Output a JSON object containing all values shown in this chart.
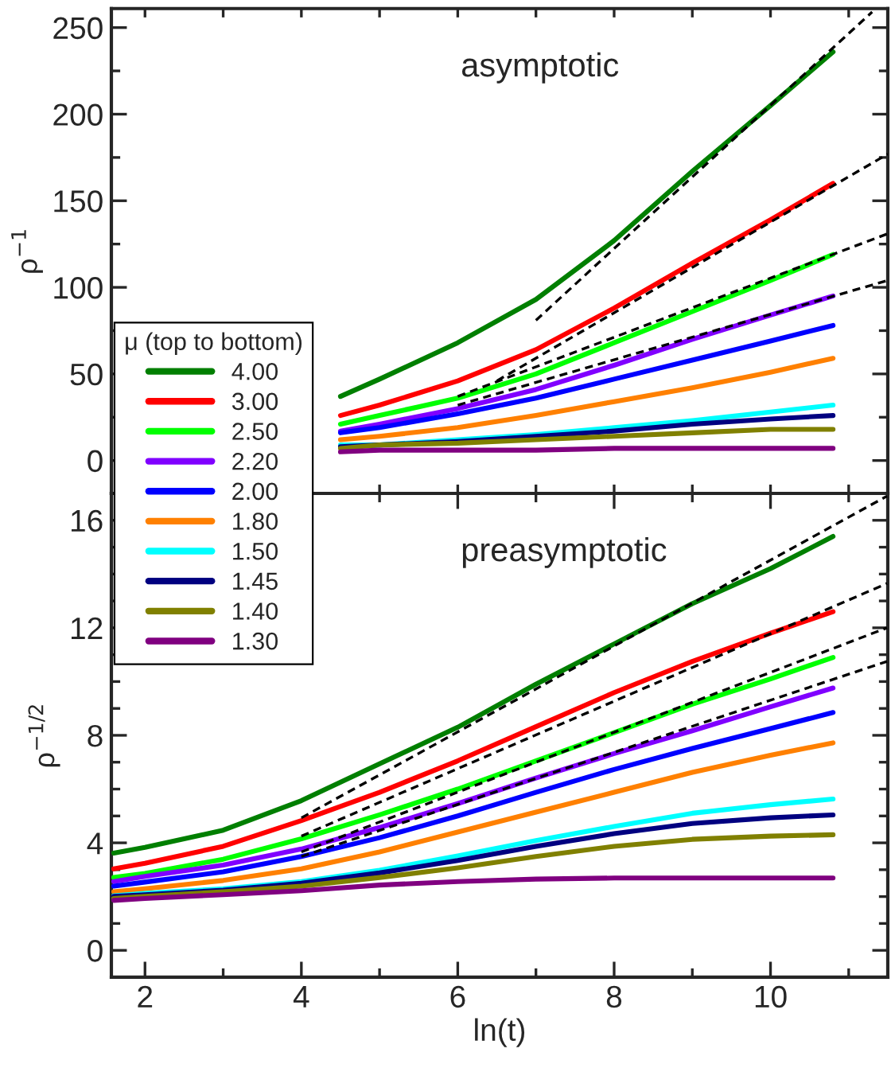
{
  "chart_data": [
    {
      "type": "line",
      "ylabel": "ρ$^{−1}$",
      "annotations": [
        "asymptotic"
      ],
      "legend": "left",
      "legend_title": "μ (top to bottom)",
      "tick_labels": "y",
      "grid": false,
      "xlim": [
        1.57,
        11.5
      ],
      "xticks": [
        {
          "value": 2,
          "label": null
        },
        {
          "value": 3,
          "label": null
        },
        {
          "value": 4,
          "label": null
        },
        {
          "value": 5,
          "label": null
        },
        {
          "value": 6,
          "label": null
        },
        {
          "value": 7,
          "label": null
        },
        {
          "value": 8,
          "label": null
        },
        {
          "value": 9,
          "label": null
        },
        {
          "value": 10,
          "label": null
        },
        {
          "value": 11,
          "label": null
        }
      ],
      "ylim": [
        -19,
        261
      ],
      "yticks": [
        0,
        {
          "value": 25,
          "label": null
        },
        50,
        {
          "value": 75,
          "label": null
        },
        100,
        {
          "value": 125,
          "label": null
        },
        150,
        {
          "value": 175,
          "label": null
        },
        200,
        {
          "value": 225,
          "label": null
        },
        250
      ],
      "x": [
        4.5,
        5,
        6,
        7,
        8,
        9,
        10,
        10.8
      ],
      "series": [
        {
          "name": "4.00",
          "color": "#007f00",
          "values": [
            37,
            47,
            68,
            93,
            127,
            167,
            205,
            236
          ]
        },
        {
          "name": "3.00",
          "color": "#ff0000",
          "values": [
            26,
            32,
            46,
            64,
            88,
            114,
            139,
            160
          ]
        },
        {
          "name": "2.50",
          "color": "#00ff00",
          "values": [
            21,
            26,
            36,
            50,
            68,
            86,
            104,
            119
          ]
        },
        {
          "name": "2.20",
          "color": "#8000ff",
          "values": [
            17,
            21,
            30,
            41,
            55,
            70,
            84,
            95
          ]
        },
        {
          "name": "2.00",
          "color": "#0000ff",
          "values": [
            16,
            19,
            27,
            36,
            47,
            58,
            69,
            78
          ]
        },
        {
          "name": "1.80",
          "color": "#ff8000",
          "values": [
            12,
            14,
            19,
            26,
            34,
            42,
            51,
            59
          ]
        },
        {
          "name": "1.50",
          "color": "#00ffff",
          "values": [
            9,
            9,
            12,
            15,
            19,
            23,
            28,
            32
          ]
        },
        {
          "name": "1.45",
          "color": "#000080",
          "values": [
            8,
            9,
            11,
            14,
            17,
            21,
            24,
            26
          ]
        },
        {
          "name": "1.40",
          "color": "#808000",
          "values": [
            7,
            9,
            10,
            12,
            14,
            16,
            18,
            18
          ]
        },
        {
          "name": "1.30",
          "color": "#800080",
          "values": [
            5,
            6,
            6,
            6,
            7,
            7,
            7,
            7
          ]
        },
        {
          "type": "line",
          "color": "#000000",
          "line_style": "dashed",
          "x": [
            7.0,
            11.3
          ],
          "values": [
            81,
            259
          ]
        },
        {
          "type": "line",
          "color": "#000000",
          "line_style": "dashed",
          "x": [
            6.5,
            11.5
          ],
          "values": [
            46,
            177
          ]
        },
        {
          "type": "line",
          "color": "#000000",
          "line_style": "dashed",
          "x": [
            6.0,
            11.5
          ],
          "values": [
            37,
            131
          ]
        },
        {
          "type": "line",
          "color": "#000000",
          "line_style": "dashed",
          "x": [
            6.0,
            11.5
          ],
          "values": [
            32,
            104
          ]
        }
      ]
    },
    {
      "type": "line",
      "ylabel": "ρ$^{−1/2}$",
      "xlabel": "ln(t)",
      "annotations": [
        "preasymptotic"
      ],
      "grid": false,
      "xlim": [
        1.57,
        11.5
      ],
      "xticks": [
        2,
        {
          "value": 3,
          "label": null
        },
        4,
        {
          "value": 5,
          "label": null
        },
        6,
        {
          "value": 7,
          "label": null
        },
        8,
        {
          "value": 9,
          "label": null
        },
        10,
        {
          "value": 11,
          "label": null
        }
      ],
      "ylim": [
        -1,
        17
      ],
      "yticks": [
        0,
        {
          "value": 1,
          "label": null
        },
        {
          "value": 2,
          "label": null
        },
        {
          "value": 3,
          "label": null
        },
        4,
        {
          "value": 5,
          "label": null
        },
        {
          "value": 6,
          "label": null
        },
        {
          "value": 7,
          "label": null
        },
        8,
        {
          "value": 9,
          "label": null
        },
        {
          "value": 10,
          "label": null
        },
        {
          "value": 11,
          "label": null
        },
        12,
        {
          "value": 13,
          "label": null
        },
        {
          "value": 14,
          "label": null
        },
        {
          "value": 15,
          "label": null
        },
        16
      ],
      "x": [
        1.6,
        2,
        3,
        4,
        5,
        6,
        7,
        8,
        9,
        10,
        10.8
      ],
      "series": [
        {
          "color": "#007f00",
          "values": [
            3.62,
            3.83,
            4.47,
            5.57,
            6.94,
            8.3,
            9.9,
            11.4,
            12.9,
            14.2,
            15.4
          ]
        },
        {
          "color": "#ff0000",
          "values": [
            3.03,
            3.24,
            3.87,
            4.83,
            5.88,
            7.05,
            8.32,
            9.59,
            10.75,
            11.8,
            12.6
          ]
        },
        {
          "color": "#00ff00",
          "values": [
            2.71,
            2.86,
            3.39,
            4.15,
            5.04,
            6.0,
            7.05,
            8.1,
            9.16,
            10.1,
            10.9
          ]
        },
        {
          "color": "#8000ff",
          "values": [
            2.56,
            2.75,
            3.17,
            3.77,
            4.57,
            5.46,
            6.41,
            7.32,
            8.17,
            9.06,
            9.76
          ]
        },
        {
          "color": "#0000ff",
          "values": [
            2.39,
            2.54,
            2.92,
            3.49,
            4.19,
            5.0,
            5.88,
            6.73,
            7.51,
            8.25,
            8.85
          ]
        },
        {
          "color": "#ff8000",
          "values": [
            2.18,
            2.29,
            2.6,
            3.03,
            3.66,
            4.4,
            5.14,
            5.88,
            6.62,
            7.26,
            7.72
          ]
        },
        {
          "color": "#00ffff",
          "values": [
            2.03,
            2.12,
            2.29,
            2.56,
            2.98,
            3.51,
            4.08,
            4.61,
            5.1,
            5.42,
            5.63
          ]
        },
        {
          "color": "#000080",
          "values": [
            2.01,
            2.07,
            2.24,
            2.5,
            2.88,
            3.34,
            3.87,
            4.34,
            4.72,
            4.93,
            5.04
          ]
        },
        {
          "color": "#808000",
          "values": [
            1.93,
            2.01,
            2.18,
            2.39,
            2.71,
            3.07,
            3.49,
            3.87,
            4.13,
            4.25,
            4.3
          ]
        },
        {
          "color": "#800080",
          "values": [
            1.86,
            1.93,
            2.07,
            2.22,
            2.43,
            2.56,
            2.65,
            2.69,
            2.69,
            2.69,
            2.69
          ]
        },
        {
          "type": "line",
          "color": "#000000",
          "line_style": "dashed",
          "x": [
            4,
            11.49
          ],
          "values": [
            4.93,
            16.9
          ]
        },
        {
          "type": "line",
          "color": "#000000",
          "line_style": "dashed",
          "x": [
            4,
            11.49
          ],
          "values": [
            4.25,
            13.65
          ]
        },
        {
          "type": "line",
          "color": "#000000",
          "line_style": "dashed",
          "x": [
            4,
            11.49
          ],
          "values": [
            3.66,
            12.0
          ]
        },
        {
          "type": "line",
          "color": "#000000",
          "line_style": "dashed",
          "x": [
            4,
            11.49
          ],
          "values": [
            3.49,
            10.75
          ]
        }
      ]
    }
  ]
}
